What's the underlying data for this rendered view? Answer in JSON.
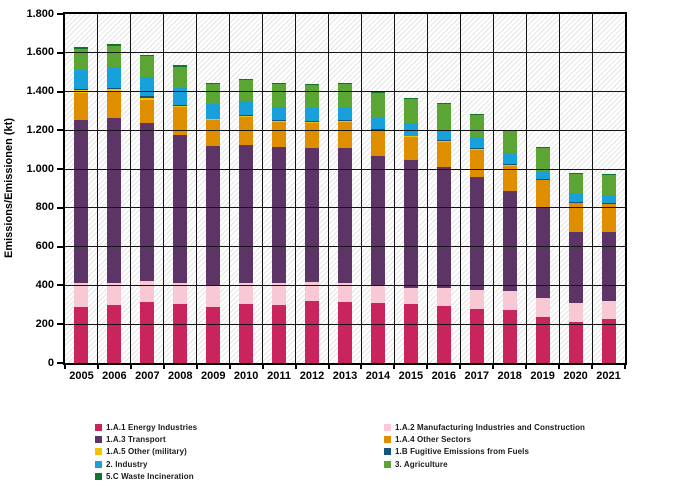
{
  "chart_data": {
    "type": "bar",
    "stacked": true,
    "title": "",
    "xlabel": "",
    "ylabel": "Emissions/Emissionen (kt)",
    "ylim": [
      0,
      1800
    ],
    "ytick_step": 200,
    "ytick_labels": [
      "0",
      "200",
      "400",
      "600",
      "800",
      "1.000",
      "1.200",
      "1.400",
      "1.600",
      "1.800"
    ],
    "grid": true,
    "plot_background": "diagonal-hatch",
    "legend_position": "bottom",
    "legend_columns": [
      [
        0,
        2,
        4,
        6,
        8
      ],
      [
        1,
        3,
        5,
        7
      ]
    ],
    "categories": [
      "2005",
      "2006",
      "2007",
      "2008",
      "2009",
      "2010",
      "2011",
      "2012",
      "2013",
      "2014",
      "2015",
      "2016",
      "2017",
      "2018",
      "2019",
      "2020",
      "2021"
    ],
    "series": [
      {
        "name": "1.A.1 Energy Industries",
        "color": "#C9245D",
        "values": [
          290,
          299,
          313,
          302,
          290,
          302,
          299,
          320,
          316,
          308,
          302,
          294,
          277,
          273,
          239,
          213,
          225
        ]
      },
      {
        "name": "1.A.2 Manufacturing Industries and Construction",
        "color": "#F8C8D4",
        "values": [
          124,
          112,
          110,
          109,
          112,
          112,
          112,
          99,
          98,
          89,
          83,
          91,
          99,
          98,
          94,
          98,
          95
        ]
      },
      {
        "name": "1.A.3 Transport",
        "color": "#5C3566",
        "values": [
          837,
          852,
          816,
          766,
          718,
          712,
          701,
          688,
          694,
          672,
          662,
          625,
          586,
          515,
          473,
          367,
          358
        ]
      },
      {
        "name": "1.A.4 Other Sectors",
        "color": "#DF8E00",
        "values": [
          141,
          138,
          119,
          144,
          133,
          142,
          131,
          132,
          135,
          131,
          119,
          132,
          136,
          132,
          136,
          145,
          140
        ]
      },
      {
        "name": "1.A.5 Other (military)",
        "color": "#F3C300",
        "values": [
          14,
          12,
          11,
          7,
          4,
          5,
          6,
          5,
          6,
          3,
          4,
          4,
          6,
          5,
          4,
          3,
          3
        ]
      },
      {
        "name": "1.B Fugitive Emissions from Fuels",
        "color": "#12557A",
        "values": [
          8,
          7,
          7,
          5,
          3,
          4,
          4,
          4,
          4,
          2,
          2,
          3,
          4,
          4,
          2,
          2,
          2
        ]
      },
      {
        "name": "2. Industry",
        "color": "#18A0DB",
        "values": [
          98,
          109,
          101,
          88,
          76,
          73,
          68,
          68,
          68,
          60,
          67,
          48,
          51,
          51,
          41,
          46,
          46
        ]
      },
      {
        "name": "3. Agriculture",
        "color": "#5BA535",
        "values": [
          107,
          108,
          106,
          108,
          105,
          108,
          116,
          118,
          116,
          130,
          123,
          139,
          122,
          119,
          119,
          101,
          103
        ]
      },
      {
        "name": "5.C Waste Incineration",
        "color": "#11732F",
        "values": [
          10,
          8,
          8,
          8,
          6,
          6,
          6,
          6,
          6,
          5,
          5,
          5,
          5,
          5,
          4,
          4,
          4
        ]
      }
    ]
  }
}
